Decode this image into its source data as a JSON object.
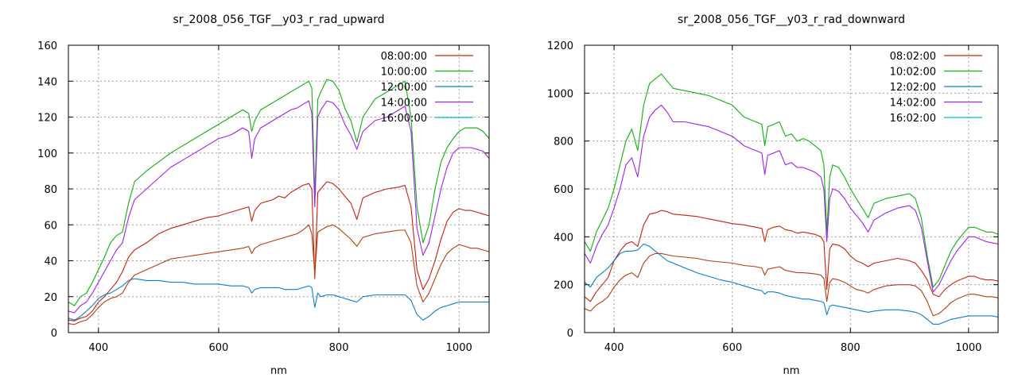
{
  "chart_data": [
    {
      "type": "line",
      "title": "sr_2008_056_TGF__y03_r_rad_upward",
      "xlabel": "nm",
      "ylabel": "",
      "xlim": [
        350,
        1050
      ],
      "ylim": [
        0,
        160
      ],
      "xticks": [
        400,
        600,
        800,
        1000
      ],
      "yticks": [
        0,
        20,
        40,
        60,
        80,
        100,
        120,
        140,
        160
      ],
      "grid": true,
      "legend": "top-right",
      "x": [
        350,
        360,
        370,
        380,
        390,
        400,
        410,
        420,
        430,
        440,
        450,
        460,
        480,
        500,
        520,
        540,
        560,
        580,
        600,
        620,
        640,
        650,
        655,
        660,
        670,
        680,
        690,
        700,
        710,
        720,
        730,
        740,
        750,
        755,
        760,
        765,
        770,
        780,
        790,
        800,
        810,
        820,
        830,
        840,
        860,
        880,
        900,
        910,
        920,
        930,
        940,
        950,
        960,
        970,
        980,
        990,
        1000,
        1010,
        1020,
        1030,
        1040,
        1050
      ],
      "series": [
        {
          "name": "08:00:00",
          "color": "#c8200e",
          "values": [
            7,
            6.5,
            8,
            9,
            12,
            17,
            20,
            24,
            28,
            34,
            42,
            46,
            50,
            55,
            58,
            60,
            62,
            64,
            65,
            67,
            69,
            70,
            62,
            68,
            72,
            73,
            74,
            76,
            75,
            78,
            80,
            82,
            83,
            80,
            30,
            78,
            80,
            84,
            83,
            80,
            76,
            72,
            63,
            75,
            78,
            80,
            81,
            82,
            70,
            35,
            24,
            30,
            40,
            52,
            62,
            67,
            69,
            68,
            68,
            67,
            66,
            65
          ]
        },
        {
          "name": "10:00:00",
          "color": "#0fb00f",
          "values": [
            17,
            15,
            20,
            22,
            28,
            35,
            42,
            50,
            54,
            56,
            72,
            84,
            90,
            95,
            100,
            104,
            108,
            112,
            116,
            120,
            124,
            122,
            112,
            118,
            124,
            126,
            128,
            130,
            132,
            134,
            136,
            138,
            140,
            136,
            76,
            130,
            134,
            141,
            140,
            135,
            125,
            118,
            106,
            120,
            130,
            134,
            138,
            140,
            120,
            70,
            50,
            60,
            80,
            95,
            103,
            108,
            112,
            114,
            114,
            114,
            112,
            108
          ]
        },
        {
          "name": "12:00:00",
          "color": "#0a7fd0",
          "values": [
            8,
            7,
            9,
            12,
            15,
            19,
            21,
            22,
            24,
            26,
            29,
            30,
            29,
            29,
            28,
            28,
            27,
            27,
            27,
            26,
            26,
            25,
            22,
            24,
            25,
            25,
            25,
            25,
            24,
            24,
            24,
            25,
            26,
            25,
            14,
            22,
            20,
            21,
            21,
            20,
            19,
            18,
            17,
            20,
            21,
            21,
            21,
            21,
            18,
            10,
            7,
            9,
            12,
            14,
            15,
            16,
            17,
            17,
            17,
            17,
            17,
            17
          ]
        },
        {
          "name": "14:00:00",
          "color": "#a020f0",
          "values": [
            12,
            11,
            15,
            17,
            22,
            28,
            34,
            40,
            46,
            50,
            64,
            74,
            80,
            86,
            92,
            96,
            100,
            104,
            108,
            110,
            114,
            112,
            97,
            108,
            114,
            116,
            118,
            120,
            122,
            124,
            125,
            127,
            129,
            122,
            70,
            120,
            124,
            129,
            128,
            124,
            116,
            110,
            102,
            112,
            118,
            120,
            124,
            126,
            112,
            58,
            43,
            50,
            65,
            80,
            92,
            100,
            103,
            103,
            103,
            102,
            101,
            97
          ]
        },
        {
          "name": "16:00:00",
          "color": "#00c0e0",
          "values": [
            null,
            null,
            null,
            null,
            null,
            null,
            null,
            null,
            null,
            null,
            null,
            null,
            null,
            null,
            null,
            null,
            null,
            null,
            null,
            null,
            null,
            null,
            null,
            null,
            null,
            null,
            null,
            null,
            null,
            null,
            null,
            null,
            null,
            null,
            null,
            null,
            null,
            null,
            null,
            null,
            null,
            null,
            null,
            null,
            null,
            null,
            null,
            null,
            null,
            null,
            null,
            null,
            null,
            null,
            null,
            null,
            null,
            null,
            null,
            null,
            null,
            null
          ]
        },
        {
          "name": "",
          "color": "#b83d10",
          "values": [
            5,
            4.5,
            6,
            7,
            10,
            14,
            17,
            19,
            20,
            22,
            28,
            32,
            35,
            38,
            41,
            42,
            43,
            44,
            45,
            46,
            47,
            48,
            44,
            47,
            49,
            50,
            51,
            52,
            53,
            54,
            55,
            57,
            60,
            55,
            33,
            56,
            57,
            59,
            60,
            58,
            55,
            52,
            48,
            53,
            55,
            56,
            57,
            57,
            50,
            26,
            17,
            22,
            30,
            38,
            44,
            47,
            49,
            48,
            47,
            47,
            46,
            45
          ]
        }
      ]
    },
    {
      "type": "line",
      "title": "sr_2008_056_TGF__y03_r_rad_downward",
      "xlabel": "nm",
      "ylabel": "",
      "xlim": [
        350,
        1050
      ],
      "ylim": [
        0,
        1200
      ],
      "xticks": [
        400,
        600,
        800,
        1000
      ],
      "yticks": [
        0,
        200,
        400,
        600,
        800,
        1000,
        1200
      ],
      "grid": true,
      "legend": "top-right",
      "x": [
        350,
        360,
        370,
        380,
        390,
        400,
        410,
        420,
        430,
        440,
        450,
        460,
        470,
        480,
        490,
        500,
        520,
        540,
        560,
        580,
        600,
        620,
        640,
        650,
        655,
        660,
        670,
        680,
        690,
        700,
        710,
        720,
        730,
        740,
        750,
        755,
        760,
        765,
        770,
        780,
        790,
        800,
        810,
        820,
        830,
        840,
        860,
        880,
        900,
        910,
        920,
        930,
        940,
        950,
        960,
        970,
        980,
        990,
        1000,
        1010,
        1020,
        1030,
        1040,
        1050
      ],
      "series": [
        {
          "name": "08:02:00",
          "color": "#c8200e",
          "values": [
            150,
            130,
            170,
            200,
            230,
            300,
            340,
            370,
            380,
            360,
            450,
            495,
            500,
            510,
            505,
            495,
            490,
            485,
            475,
            465,
            455,
            450,
            440,
            435,
            380,
            430,
            440,
            445,
            430,
            425,
            415,
            420,
            415,
            410,
            400,
            380,
            180,
            350,
            370,
            365,
            350,
            320,
            300,
            290,
            275,
            290,
            300,
            310,
            300,
            290,
            260,
            220,
            160,
            150,
            180,
            200,
            215,
            225,
            235,
            235,
            225,
            220,
            220,
            215
          ]
        },
        {
          "name": "10:02:00",
          "color": "#0fb00f",
          "values": [
            380,
            340,
            420,
            470,
            520,
            600,
            700,
            800,
            850,
            760,
            950,
            1040,
            1060,
            1080,
            1050,
            1020,
            1010,
            1000,
            990,
            970,
            950,
            900,
            880,
            870,
            780,
            860,
            870,
            880,
            820,
            830,
            800,
            810,
            800,
            780,
            760,
            700,
            420,
            650,
            700,
            690,
            650,
            600,
            560,
            520,
            480,
            540,
            560,
            570,
            580,
            560,
            480,
            320,
            190,
            220,
            280,
            340,
            380,
            410,
            440,
            440,
            430,
            420,
            420,
            410
          ]
        },
        {
          "name": "12:02:00",
          "color": "#0a7fd0",
          "values": [
            210,
            190,
            230,
            250,
            270,
            300,
            330,
            340,
            340,
            345,
            370,
            360,
            340,
            320,
            300,
            290,
            270,
            250,
            235,
            220,
            210,
            195,
            180,
            175,
            160,
            170,
            170,
            165,
            155,
            150,
            145,
            140,
            140,
            135,
            130,
            125,
            75,
            110,
            115,
            110,
            105,
            100,
            95,
            90,
            85,
            90,
            95,
            95,
            90,
            85,
            75,
            55,
            35,
            35,
            45,
            55,
            60,
            65,
            70,
            70,
            70,
            70,
            70,
            65
          ]
        },
        {
          "name": "14:02:00",
          "color": "#a020f0",
          "values": [
            330,
            290,
            360,
            410,
            450,
            520,
            600,
            700,
            730,
            650,
            820,
            900,
            930,
            950,
            920,
            880,
            880,
            870,
            860,
            840,
            820,
            780,
            760,
            750,
            660,
            740,
            750,
            760,
            700,
            710,
            690,
            690,
            680,
            670,
            650,
            600,
            380,
            560,
            600,
            590,
            560,
            520,
            490,
            460,
            420,
            470,
            500,
            520,
            530,
            510,
            440,
            300,
            170,
            200,
            250,
            300,
            340,
            370,
            400,
            400,
            390,
            380,
            375,
            370
          ]
        },
        {
          "name": "16:02:00",
          "color": "#00c0e0",
          "values": [
            null,
            null,
            null,
            null,
            null,
            null,
            null,
            null,
            null,
            null,
            null,
            null,
            null,
            null,
            null,
            null,
            null,
            null,
            null,
            null,
            null,
            null,
            null,
            null,
            null,
            null,
            null,
            null,
            null,
            null,
            null,
            null,
            null,
            null,
            null,
            null,
            null,
            null,
            null,
            null,
            null,
            null,
            null,
            null,
            null,
            null,
            null,
            null,
            null,
            null,
            null,
            null,
            null,
            null,
            null,
            null,
            null,
            null,
            null,
            null,
            null,
            null,
            null,
            null
          ]
        },
        {
          "name": "",
          "color": "#b83d10",
          "values": [
            100,
            90,
            115,
            130,
            150,
            190,
            220,
            240,
            250,
            230,
            290,
            320,
            330,
            330,
            325,
            320,
            315,
            310,
            300,
            295,
            290,
            280,
            275,
            270,
            240,
            265,
            270,
            275,
            260,
            255,
            250,
            250,
            248,
            245,
            240,
            225,
            130,
            210,
            225,
            220,
            210,
            195,
            180,
            175,
            165,
            180,
            195,
            200,
            200,
            195,
            175,
            130,
            70,
            80,
            100,
            125,
            140,
            150,
            160,
            160,
            155,
            150,
            150,
            145
          ]
        }
      ]
    }
  ]
}
